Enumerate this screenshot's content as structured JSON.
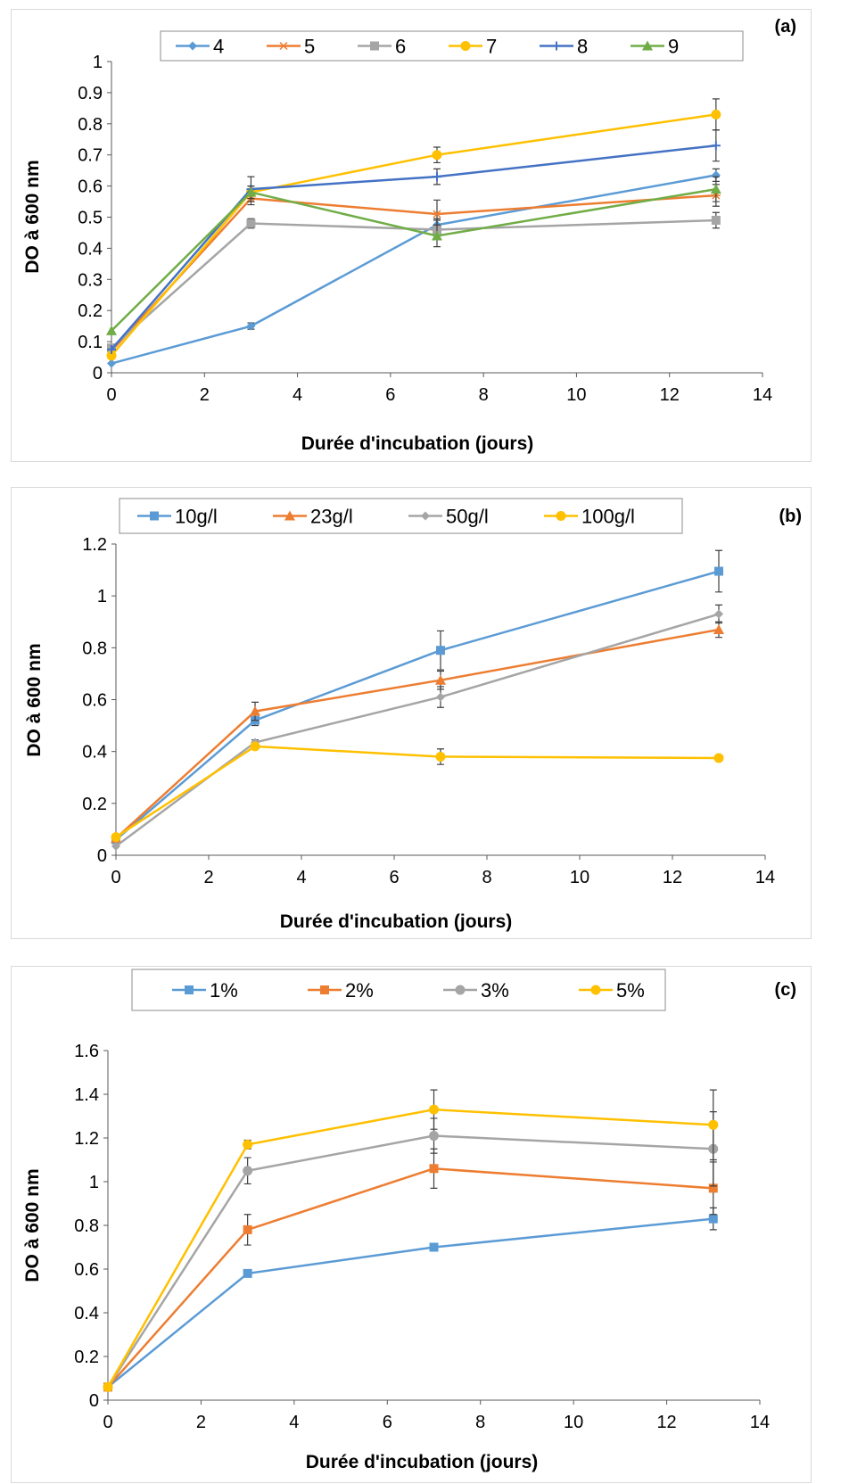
{
  "chart_data": [
    {
      "type": "line",
      "panel_label": "(a)",
      "xlabel": "Durée d'incubation (jours)",
      "ylabel": "DO à 600 nm",
      "x": [
        0,
        3,
        7,
        13
      ],
      "xlim": [
        0,
        14
      ],
      "ylim": [
        0,
        1
      ],
      "x_ticks": [
        "0",
        "2",
        "4",
        "6",
        "8",
        "10",
        "12",
        "14"
      ],
      "y_ticks": [
        "0",
        "0.1",
        "0.2",
        "0.3",
        "0.4",
        "0.5",
        "0.6",
        "0.7",
        "0.8",
        "0.9",
        "1"
      ],
      "grid": false,
      "legend_position": "top",
      "series": [
        {
          "name": "4",
          "color": "#5b9bd5",
          "marker": "diamond",
          "values": [
            0.03,
            0.15,
            0.475,
            0.635
          ],
          "errors": [
            0.005,
            0.01,
            0.02,
            0.02
          ]
        },
        {
          "name": "5",
          "color": "#ed7d31",
          "marker": "star",
          "values": [
            0.07,
            0.56,
            0.51,
            0.57
          ],
          "errors": [
            0.005,
            0.02,
            0.045,
            0.035
          ]
        },
        {
          "name": "6",
          "color": "#a5a5a5",
          "marker": "square",
          "values": [
            0.08,
            0.48,
            0.46,
            0.49
          ],
          "errors": [
            0.005,
            0.015,
            0.03,
            0.025
          ]
        },
        {
          "name": "7",
          "color": "#ffc000",
          "marker": "circle",
          "values": [
            0.055,
            0.58,
            0.7,
            0.83
          ],
          "errors": [
            0.005,
            0.02,
            0.025,
            0.05
          ]
        },
        {
          "name": "8",
          "color": "#4472c4",
          "marker": "plus",
          "values": [
            0.075,
            0.59,
            0.63,
            0.73
          ],
          "errors": [
            0.005,
            0.04,
            0.025,
            0.05
          ]
        },
        {
          "name": "9",
          "color": "#70ad47",
          "marker": "triangle",
          "values": [
            0.135,
            0.58,
            0.44,
            0.59
          ],
          "errors": [
            0.005,
            0.02,
            0.035,
            0.04
          ]
        }
      ]
    },
    {
      "type": "line",
      "panel_label": "(b)",
      "xlabel": "Durée d'incubation (jours)",
      "ylabel": "DO à 600 nm",
      "x": [
        0,
        3,
        7,
        13
      ],
      "xlim": [
        0,
        14
      ],
      "ylim": [
        0,
        1.2
      ],
      "x_ticks": [
        "0",
        "2",
        "4",
        "6",
        "8",
        "10",
        "12",
        "14"
      ],
      "y_ticks": [
        "0",
        "0.2",
        "0.4",
        "0.6",
        "0.8",
        "1",
        "1.2"
      ],
      "grid": false,
      "legend_position": "top",
      "series": [
        {
          "name": "10g/l",
          "color": "#5b9bd5",
          "marker": "square",
          "values": [
            0.06,
            0.52,
            0.79,
            1.095
          ],
          "errors": [
            0.005,
            0.02,
            0.075,
            0.08
          ]
        },
        {
          "name": "23g/l",
          "color": "#ed7d31",
          "marker": "triangle",
          "values": [
            0.065,
            0.555,
            0.675,
            0.87
          ],
          "errors": [
            0.005,
            0.035,
            0.035,
            0.03
          ]
        },
        {
          "name": "50g/l",
          "color": "#a5a5a5",
          "marker": "diamond",
          "values": [
            0.035,
            0.435,
            0.61,
            0.93
          ],
          "errors": [
            0.005,
            0.01,
            0.04,
            0.035
          ]
        },
        {
          "name": "100g/l",
          "color": "#ffc000",
          "marker": "circle",
          "values": [
            0.07,
            0.42,
            0.38,
            0.375
          ],
          "errors": [
            0.005,
            0.01,
            0.03,
            0.005
          ]
        }
      ]
    },
    {
      "type": "line",
      "panel_label": "(c)",
      "xlabel": "Durée d'incubation (jours)",
      "ylabel": "DO à 600 nm",
      "x": [
        0,
        3,
        7,
        13
      ],
      "xlim": [
        0,
        14
      ],
      "ylim": [
        0,
        1.6
      ],
      "x_ticks": [
        "0",
        "2",
        "4",
        "6",
        "8",
        "10",
        "12",
        "14"
      ],
      "y_ticks": [
        "0",
        "0.2",
        "0.4",
        "0.6",
        "0.8",
        "1",
        "1.2",
        "1.4",
        "1.6"
      ],
      "grid": false,
      "legend_position": "top",
      "series": [
        {
          "name": "1%",
          "color": "#5b9bd5",
          "marker": "square",
          "values": [
            0.06,
            0.58,
            0.7,
            0.83
          ],
          "errors": [
            0.005,
            0.01,
            0.015,
            0.05
          ]
        },
        {
          "name": "2%",
          "color": "#ed7d31",
          "marker": "square",
          "values": [
            0.06,
            0.78,
            1.06,
            0.97
          ],
          "errors": [
            0.005,
            0.07,
            0.09,
            0.12
          ]
        },
        {
          "name": "3%",
          "color": "#a5a5a5",
          "marker": "circle",
          "values": [
            0.06,
            1.05,
            1.21,
            1.15
          ],
          "errors": [
            0.005,
            0.06,
            0.08,
            0.17
          ]
        },
        {
          "name": "5%",
          "color": "#ffc000",
          "marker": "circle",
          "values": [
            0.06,
            1.17,
            1.33,
            1.26
          ],
          "errors": [
            0.005,
            0.02,
            0.09,
            0.16
          ]
        }
      ]
    }
  ]
}
